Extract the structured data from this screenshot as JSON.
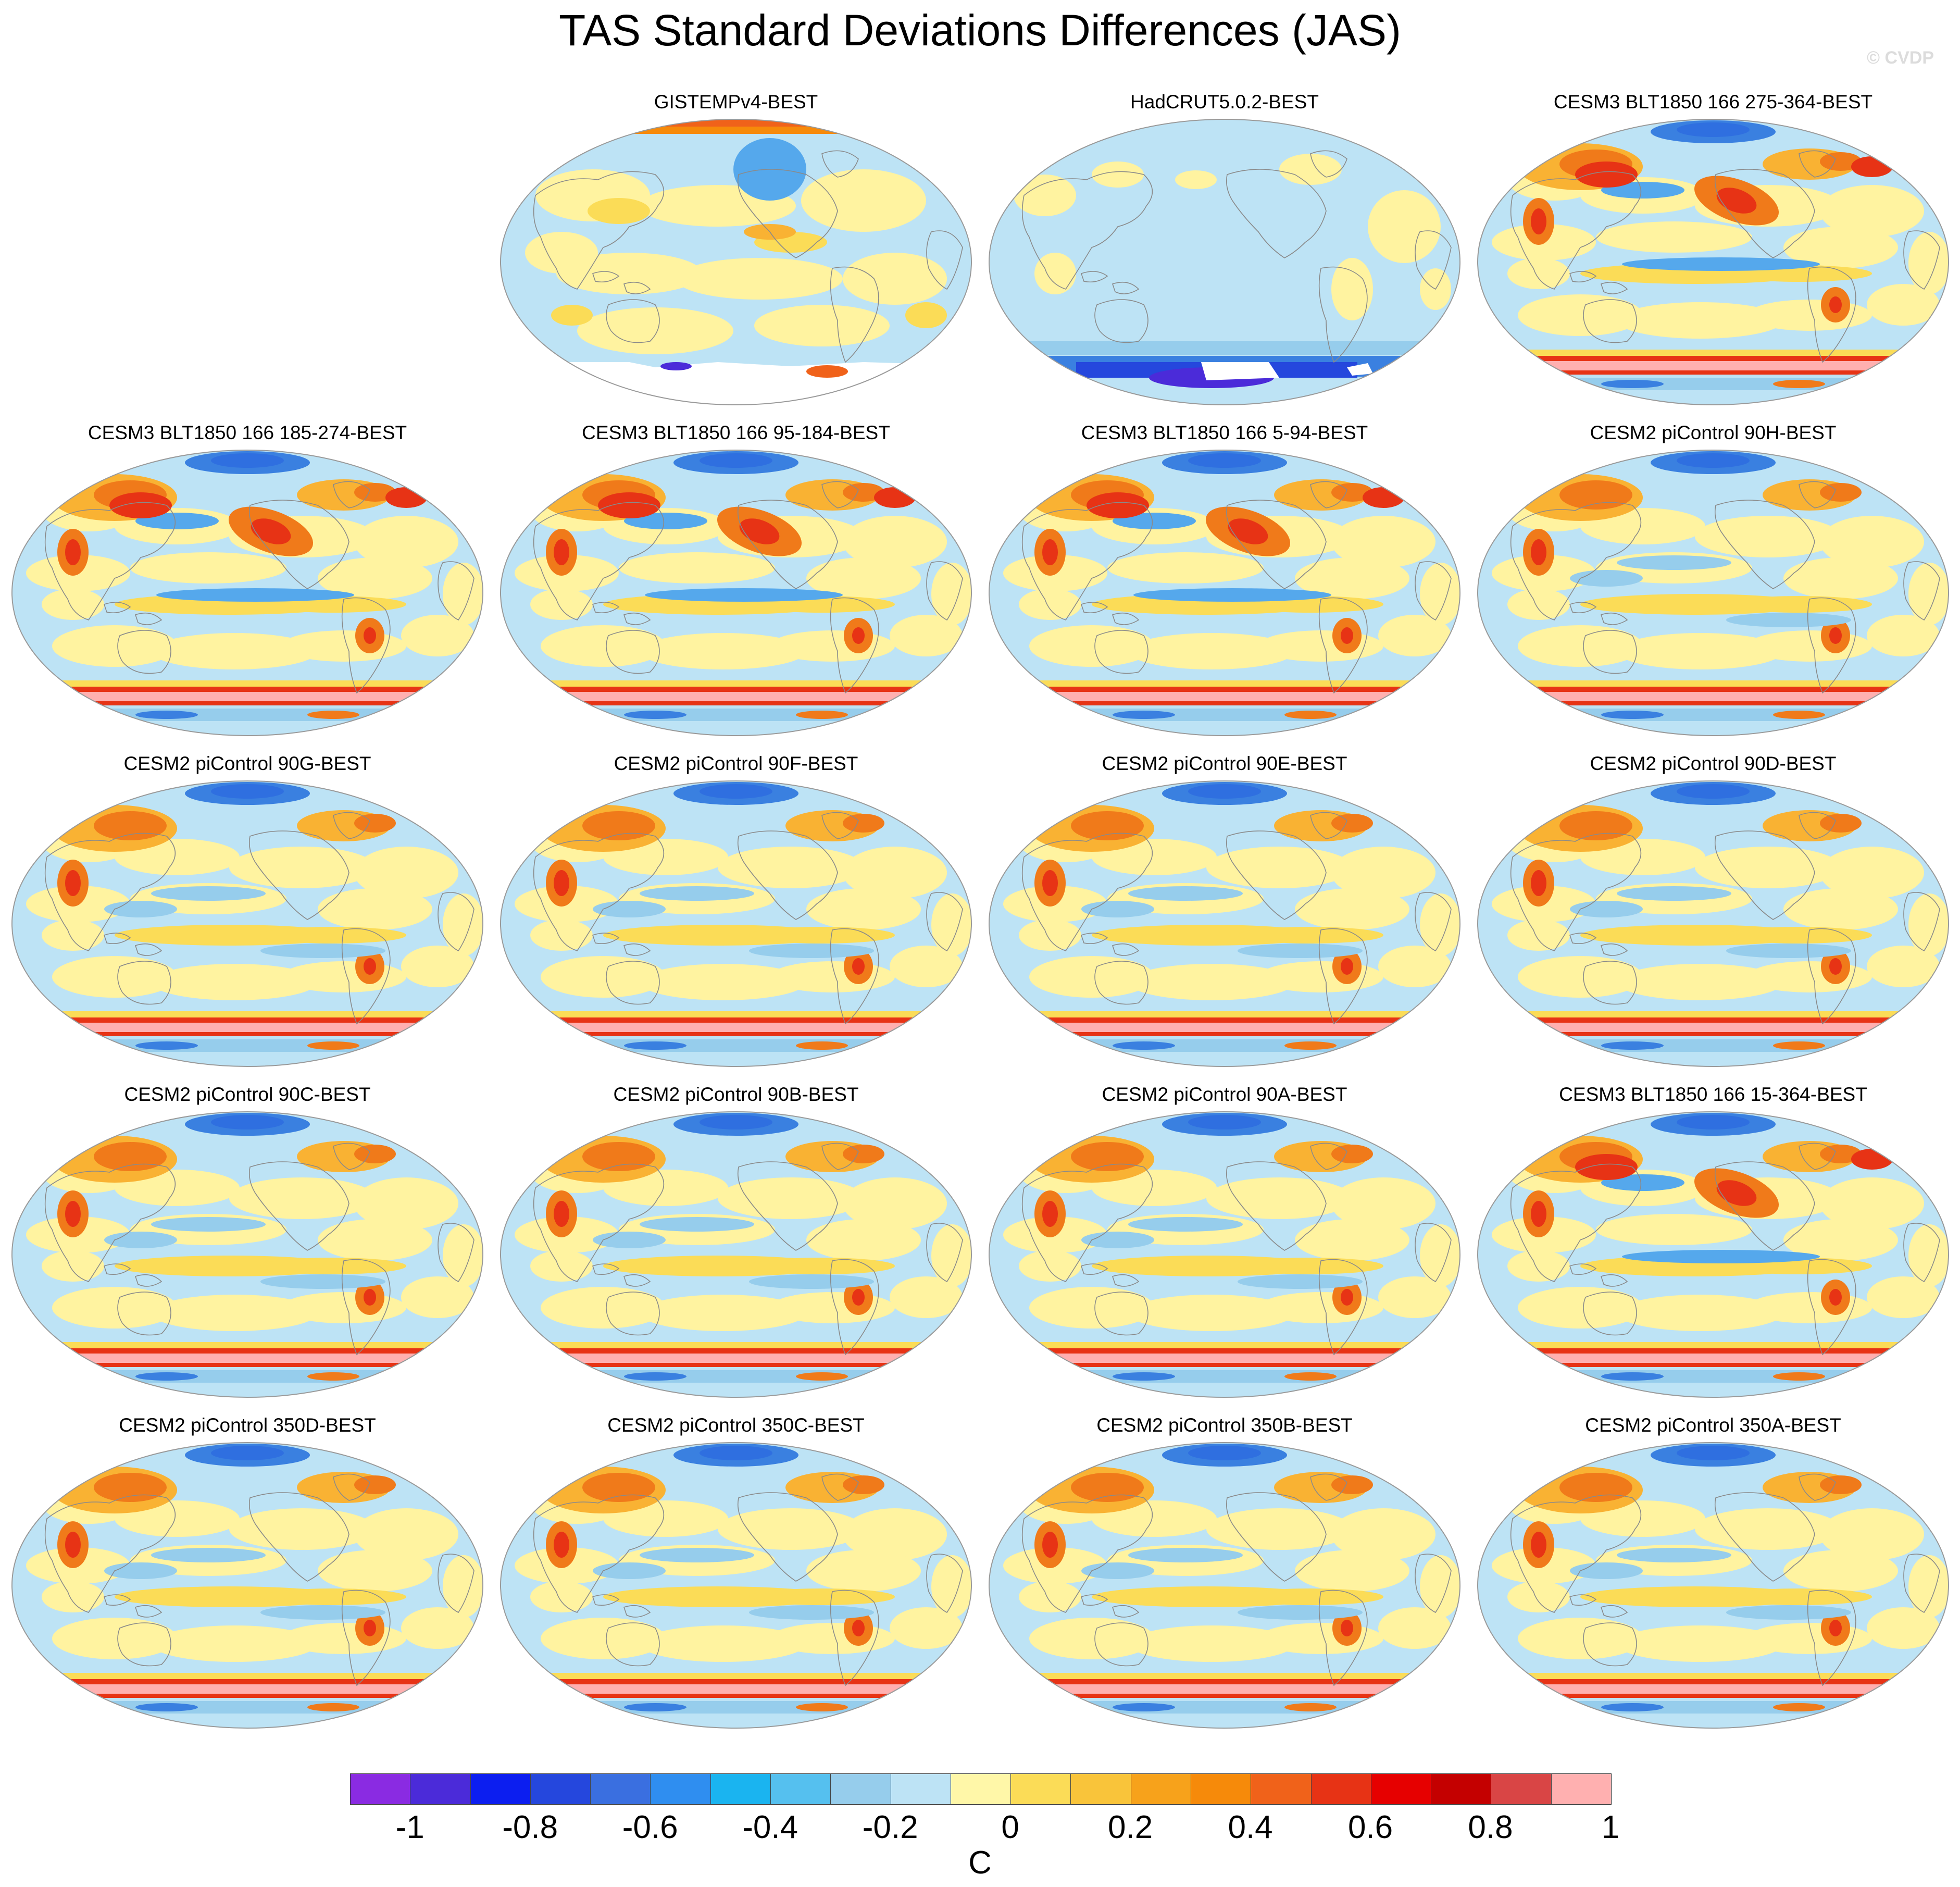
{
  "title": "TAS Standard Deviations Differences (JAS)",
  "watermark": "© CVDP",
  "panels": [
    {
      "title": "GISTEMPv4-BEST",
      "style": "gistemp"
    },
    {
      "title": "HadCRUT5.0.2-BEST",
      "style": "hadcrut"
    },
    {
      "title": "CESM3 BLT1850 166 275-364-BEST",
      "style": "cesm3"
    },
    {
      "title": "CESM3 BLT1850 166 185-274-BEST",
      "style": "cesm3"
    },
    {
      "title": "CESM3 BLT1850 166 95-184-BEST",
      "style": "cesm3"
    },
    {
      "title": "CESM3 BLT1850 166 5-94-BEST",
      "style": "cesm3"
    },
    {
      "title": "CESM2 piControl 90H-BEST",
      "style": "cesm2"
    },
    {
      "title": "CESM2 piControl 90G-BEST",
      "style": "cesm2"
    },
    {
      "title": "CESM2 piControl 90F-BEST",
      "style": "cesm2"
    },
    {
      "title": "CESM2 piControl 90E-BEST",
      "style": "cesm2"
    },
    {
      "title": "CESM2 piControl 90D-BEST",
      "style": "cesm2"
    },
    {
      "title": "CESM2 piControl 90C-BEST",
      "style": "cesm2"
    },
    {
      "title": "CESM2 piControl 90B-BEST",
      "style": "cesm2"
    },
    {
      "title": "CESM2 piControl 90A-BEST",
      "style": "cesm2"
    },
    {
      "title": "CESM3 BLT1850 166 15-364-BEST",
      "style": "cesm3"
    },
    {
      "title": "CESM2 piControl 350D-BEST",
      "style": "cesm2"
    },
    {
      "title": "CESM2 piControl 350C-BEST",
      "style": "cesm2"
    },
    {
      "title": "CESM2 piControl 350B-BEST",
      "style": "cesm2"
    },
    {
      "title": "CESM2 piControl 350A-BEST",
      "style": "cesm2"
    }
  ],
  "colorbar": {
    "colors": [
      "#8a2be2",
      "#4b2bd9",
      "#0c1ef0",
      "#2547dd",
      "#3a6fe0",
      "#2f8ef0",
      "#1ab4f0",
      "#55c0ef",
      "#96cdec",
      "#bde3f5",
      "#fff7a8",
      "#fbdc57",
      "#f9c43a",
      "#f7a21b",
      "#f68a0a",
      "#f0621a",
      "#e73315",
      "#e60000",
      "#c40000",
      "#d94545",
      "#ffb0b0"
    ],
    "tick_labels": [
      "-1",
      "-0.8",
      "-0.6",
      "-0.4",
      "-0.2",
      "0",
      "0.2",
      "0.4",
      "0.6",
      "0.8",
      "1"
    ],
    "unit": "C"
  }
}
